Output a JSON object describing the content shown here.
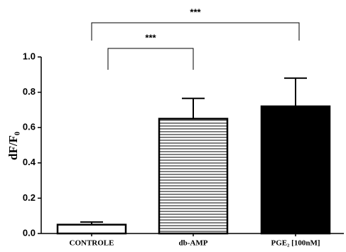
{
  "chart_data": {
    "type": "bar",
    "categories": [
      "CONTROLE",
      "db-AMP",
      "PGE₂ [100nM]"
    ],
    "values": [
      0.05,
      0.65,
      0.72
    ],
    "errors": [
      0.015,
      0.115,
      0.16
    ],
    "patterns": [
      "none",
      "horizontal-lines",
      "solid"
    ],
    "color": "#000000",
    "y_label": "dF/F₀",
    "ylim": [
      0,
      1.0
    ],
    "yticks": [
      {
        "value": 0,
        "label": "0.0"
      },
      0.2,
      0.4,
      0.6,
      0.8,
      {
        "value": 1.0,
        "label": "1.0"
      }
    ],
    "annotations": [
      {
        "label": "***",
        "between": [
          "CONTROLE",
          "db-AMP"
        ]
      },
      {
        "label": "***",
        "between": [
          "CONTROLE",
          "PGE₂ [100nM]"
        ]
      }
    ],
    "grid": false
  }
}
